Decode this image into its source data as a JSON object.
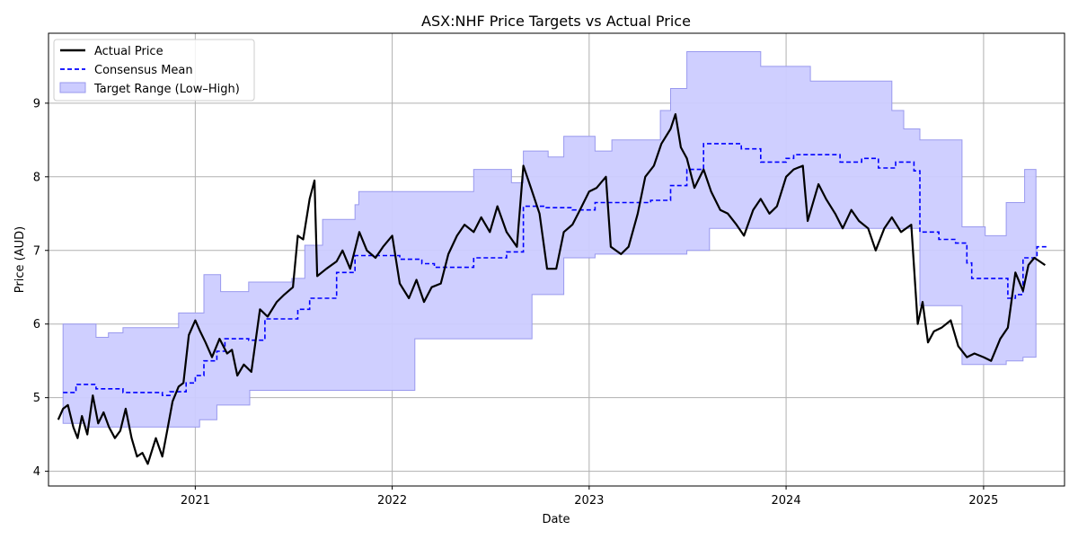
{
  "chart_data": {
    "type": "line",
    "title": "ASX:NHF Price Targets vs Actual Price",
    "xlabel": "Date",
    "ylabel": "Price (AUD)",
    "xlim": [
      "2020-04-04",
      "2025-05-31"
    ],
    "ylim": [
      3.8,
      9.95
    ],
    "grid": true,
    "legend_position": "top-left",
    "x_ticks": [
      "2021",
      "2022",
      "2023",
      "2024",
      "2025"
    ],
    "y_ticks": [
      4,
      5,
      6,
      7,
      8,
      9
    ],
    "colors": {
      "actual": "#000000",
      "mean": "#0000ff",
      "range_fill": "#ccccff",
      "range_edge": "#9999ee"
    },
    "legend": [
      {
        "label": "Actual Price",
        "style": "solid-black"
      },
      {
        "label": "Consensus Mean",
        "style": "dashed-blue"
      },
      {
        "label": "Target Range (Low–High)",
        "style": "fill-lavender"
      }
    ],
    "target_high": [
      [
        "2020-05-01",
        6.0
      ],
      [
        "2020-07-01",
        5.82
      ],
      [
        "2020-07-24",
        5.88
      ],
      [
        "2020-08-20",
        5.95
      ],
      [
        "2020-12-01",
        6.15
      ],
      [
        "2021-01-17",
        6.67
      ],
      [
        "2021-02-17",
        6.44
      ],
      [
        "2021-04-10",
        6.57
      ],
      [
        "2021-06-29",
        6.62
      ],
      [
        "2021-07-23",
        7.07
      ],
      [
        "2021-08-25",
        7.42
      ],
      [
        "2021-10-24",
        7.62
      ],
      [
        "2021-10-31",
        7.8
      ],
      [
        "2022-06-01",
        8.1
      ],
      [
        "2022-08-10",
        7.92
      ],
      [
        "2022-09-01",
        8.35
      ],
      [
        "2022-10-17",
        8.27
      ],
      [
        "2022-11-15",
        8.55
      ],
      [
        "2023-01-12",
        8.35
      ],
      [
        "2023-02-12",
        8.5
      ],
      [
        "2023-05-13",
        8.9
      ],
      [
        "2023-06-01",
        9.2
      ],
      [
        "2023-07-01",
        9.7
      ],
      [
        "2023-11-15",
        9.5
      ],
      [
        "2024-02-15",
        9.3
      ],
      [
        "2024-07-15",
        8.9
      ],
      [
        "2024-08-06",
        8.65
      ],
      [
        "2024-09-05",
        8.5
      ],
      [
        "2024-11-22",
        7.32
      ],
      [
        "2025-01-04",
        7.2
      ],
      [
        "2025-02-12",
        7.65
      ],
      [
        "2025-03-18",
        8.1
      ],
      [
        "2025-04-08",
        8.1
      ]
    ],
    "target_low": [
      [
        "2020-05-01",
        4.65
      ],
      [
        "2020-06-10",
        4.6
      ],
      [
        "2021-01-09",
        4.7
      ],
      [
        "2021-02-10",
        4.9
      ],
      [
        "2021-04-12",
        5.1
      ],
      [
        "2022-02-12",
        5.8
      ],
      [
        "2022-09-17",
        6.4
      ],
      [
        "2022-11-15",
        6.9
      ],
      [
        "2023-01-12",
        6.95
      ],
      [
        "2023-07-01",
        7.0
      ],
      [
        "2023-08-12",
        7.3
      ],
      [
        "2024-04-22",
        7.3
      ],
      [
        "2024-09-05",
        6.25
      ],
      [
        "2024-11-22",
        5.45
      ],
      [
        "2025-02-12",
        5.5
      ],
      [
        "2025-03-15",
        5.55
      ],
      [
        "2025-04-08",
        5.55
      ]
    ],
    "consensus_mean": [
      [
        "2020-05-01",
        5.07
      ],
      [
        "2020-05-25",
        5.18
      ],
      [
        "2020-07-01",
        5.12
      ],
      [
        "2020-08-20",
        5.07
      ],
      [
        "2020-11-01",
        5.03
      ],
      [
        "2020-11-15",
        5.08
      ],
      [
        "2020-12-15",
        5.2
      ],
      [
        "2021-01-01",
        5.3
      ],
      [
        "2021-01-17",
        5.5
      ],
      [
        "2021-02-10",
        5.63
      ],
      [
        "2021-02-25",
        5.8
      ],
      [
        "2021-04-10",
        5.78
      ],
      [
        "2021-05-10",
        6.07
      ],
      [
        "2021-07-10",
        6.2
      ],
      [
        "2021-08-01",
        6.35
      ],
      [
        "2021-09-20",
        6.7
      ],
      [
        "2021-10-24",
        6.93
      ],
      [
        "2022-01-15",
        6.88
      ],
      [
        "2022-02-25",
        6.82
      ],
      [
        "2022-03-20",
        6.77
      ],
      [
        "2022-06-01",
        6.9
      ],
      [
        "2022-08-01",
        6.98
      ],
      [
        "2022-09-01",
        7.6
      ],
      [
        "2022-10-10",
        7.58
      ],
      [
        "2022-12-01",
        7.55
      ],
      [
        "2023-01-12",
        7.65
      ],
      [
        "2023-04-25",
        7.68
      ],
      [
        "2023-06-01",
        7.88
      ],
      [
        "2023-07-01",
        8.1
      ],
      [
        "2023-08-01",
        8.45
      ],
      [
        "2023-10-10",
        8.38
      ],
      [
        "2023-11-15",
        8.2
      ],
      [
        "2024-01-01",
        8.25
      ],
      [
        "2024-01-15",
        8.3
      ],
      [
        "2024-04-10",
        8.2
      ],
      [
        "2024-05-20",
        8.25
      ],
      [
        "2024-06-20",
        8.12
      ],
      [
        "2024-07-22",
        8.2
      ],
      [
        "2024-08-25",
        8.08
      ],
      [
        "2024-09-05",
        7.25
      ],
      [
        "2024-10-10",
        7.15
      ],
      [
        "2024-11-10",
        7.1
      ],
      [
        "2024-12-01",
        6.83
      ],
      [
        "2024-12-10",
        6.62
      ],
      [
        "2025-02-15",
        6.35
      ],
      [
        "2025-03-01",
        6.4
      ],
      [
        "2025-03-15",
        6.9
      ],
      [
        "2025-04-10",
        7.05
      ],
      [
        "2025-04-30",
        7.05
      ]
    ],
    "actual_price": [
      [
        "2020-04-22",
        4.7
      ],
      [
        "2020-05-01",
        4.85
      ],
      [
        "2020-05-10",
        4.9
      ],
      [
        "2020-05-20",
        4.6
      ],
      [
        "2020-05-28",
        4.45
      ],
      [
        "2020-06-05",
        4.75
      ],
      [
        "2020-06-15",
        4.5
      ],
      [
        "2020-06-25",
        5.03
      ],
      [
        "2020-07-05",
        4.65
      ],
      [
        "2020-07-15",
        4.8
      ],
      [
        "2020-07-25",
        4.6
      ],
      [
        "2020-08-05",
        4.45
      ],
      [
        "2020-08-15",
        4.55
      ],
      [
        "2020-08-25",
        4.85
      ],
      [
        "2020-09-05",
        4.45
      ],
      [
        "2020-09-15",
        4.2
      ],
      [
        "2020-09-25",
        4.25
      ],
      [
        "2020-10-05",
        4.1
      ],
      [
        "2020-10-20",
        4.45
      ],
      [
        "2020-11-01",
        4.2
      ],
      [
        "2020-11-10",
        4.55
      ],
      [
        "2020-11-20",
        4.95
      ],
      [
        "2020-12-01",
        5.15
      ],
      [
        "2020-12-10",
        5.2
      ],
      [
        "2020-12-20",
        5.85
      ],
      [
        "2021-01-01",
        6.05
      ],
      [
        "2021-01-10",
        5.9
      ],
      [
        "2021-01-20",
        5.75
      ],
      [
        "2021-02-01",
        5.55
      ],
      [
        "2021-02-15",
        5.8
      ],
      [
        "2021-03-01",
        5.6
      ],
      [
        "2021-03-10",
        5.65
      ],
      [
        "2021-03-20",
        5.3
      ],
      [
        "2021-04-01",
        5.45
      ],
      [
        "2021-04-15",
        5.35
      ],
      [
        "2021-05-01",
        6.2
      ],
      [
        "2021-05-15",
        6.1
      ],
      [
        "2021-06-01",
        6.3
      ],
      [
        "2021-06-15",
        6.4
      ],
      [
        "2021-07-01",
        6.5
      ],
      [
        "2021-07-10",
        7.2
      ],
      [
        "2021-07-20",
        7.15
      ],
      [
        "2021-08-01",
        7.7
      ],
      [
        "2021-08-10",
        7.95
      ],
      [
        "2021-08-15",
        6.65
      ],
      [
        "2021-09-01",
        6.75
      ],
      [
        "2021-09-20",
        6.85
      ],
      [
        "2021-10-01",
        7.0
      ],
      [
        "2021-10-15",
        6.75
      ],
      [
        "2021-11-01",
        7.25
      ],
      [
        "2021-11-15",
        7.0
      ],
      [
        "2021-12-01",
        6.9
      ],
      [
        "2021-12-15",
        7.05
      ],
      [
        "2022-01-01",
        7.2
      ],
      [
        "2022-01-15",
        6.55
      ],
      [
        "2022-02-01",
        6.35
      ],
      [
        "2022-02-15",
        6.6
      ],
      [
        "2022-03-01",
        6.3
      ],
      [
        "2022-03-15",
        6.5
      ],
      [
        "2022-04-01",
        6.55
      ],
      [
        "2022-04-15",
        6.95
      ],
      [
        "2022-05-01",
        7.2
      ],
      [
        "2022-05-15",
        7.35
      ],
      [
        "2022-06-01",
        7.25
      ],
      [
        "2022-06-15",
        7.45
      ],
      [
        "2022-07-01",
        7.25
      ],
      [
        "2022-07-15",
        7.6
      ],
      [
        "2022-08-01",
        7.25
      ],
      [
        "2022-08-20",
        7.05
      ],
      [
        "2022-09-01",
        8.15
      ],
      [
        "2022-09-15",
        7.85
      ],
      [
        "2022-10-01",
        7.5
      ],
      [
        "2022-10-15",
        6.75
      ],
      [
        "2022-11-01",
        6.75
      ],
      [
        "2022-11-15",
        7.25
      ],
      [
        "2022-12-01",
        7.35
      ],
      [
        "2022-12-15",
        7.55
      ],
      [
        "2023-01-01",
        7.8
      ],
      [
        "2023-01-15",
        7.85
      ],
      [
        "2023-02-01",
        8.0
      ],
      [
        "2023-02-10",
        7.05
      ],
      [
        "2023-03-01",
        6.95
      ],
      [
        "2023-03-15",
        7.05
      ],
      [
        "2023-04-01",
        7.5
      ],
      [
        "2023-04-15",
        8.0
      ],
      [
        "2023-05-01",
        8.15
      ],
      [
        "2023-05-15",
        8.45
      ],
      [
        "2023-06-01",
        8.65
      ],
      [
        "2023-06-10",
        8.85
      ],
      [
        "2023-06-20",
        8.4
      ],
      [
        "2023-07-01",
        8.25
      ],
      [
        "2023-07-15",
        7.85
      ],
      [
        "2023-08-01",
        8.1
      ],
      [
        "2023-08-15",
        7.8
      ],
      [
        "2023-09-01",
        7.55
      ],
      [
        "2023-09-15",
        7.5
      ],
      [
        "2023-10-01",
        7.35
      ],
      [
        "2023-10-15",
        7.2
      ],
      [
        "2023-11-01",
        7.55
      ],
      [
        "2023-11-15",
        7.7
      ],
      [
        "2023-12-01",
        7.5
      ],
      [
        "2023-12-15",
        7.6
      ],
      [
        "2024-01-01",
        8.0
      ],
      [
        "2024-01-15",
        8.1
      ],
      [
        "2024-02-01",
        8.15
      ],
      [
        "2024-02-10",
        7.4
      ],
      [
        "2024-03-01",
        7.9
      ],
      [
        "2024-03-15",
        7.7
      ],
      [
        "2024-04-01",
        7.5
      ],
      [
        "2024-04-15",
        7.3
      ],
      [
        "2024-05-01",
        7.55
      ],
      [
        "2024-05-15",
        7.4
      ],
      [
        "2024-06-01",
        7.3
      ],
      [
        "2024-06-15",
        7.0
      ],
      [
        "2024-07-01",
        7.3
      ],
      [
        "2024-07-15",
        7.45
      ],
      [
        "2024-08-01",
        7.25
      ],
      [
        "2024-08-20",
        7.35
      ],
      [
        "2024-09-01",
        6.0
      ],
      [
        "2024-09-10",
        6.3
      ],
      [
        "2024-09-20",
        5.75
      ],
      [
        "2024-10-01",
        5.9
      ],
      [
        "2024-10-15",
        5.95
      ],
      [
        "2024-11-01",
        6.05
      ],
      [
        "2024-11-15",
        5.7
      ],
      [
        "2024-12-01",
        5.55
      ],
      [
        "2024-12-15",
        5.6
      ],
      [
        "2025-01-01",
        5.55
      ],
      [
        "2025-01-15",
        5.5
      ],
      [
        "2025-02-01",
        5.8
      ],
      [
        "2025-02-15",
        5.95
      ],
      [
        "2025-03-01",
        6.7
      ],
      [
        "2025-03-15",
        6.45
      ],
      [
        "2025-03-25",
        6.8
      ],
      [
        "2025-04-05",
        6.9
      ],
      [
        "2025-04-15",
        6.85
      ],
      [
        "2025-04-25",
        6.8
      ]
    ]
  }
}
